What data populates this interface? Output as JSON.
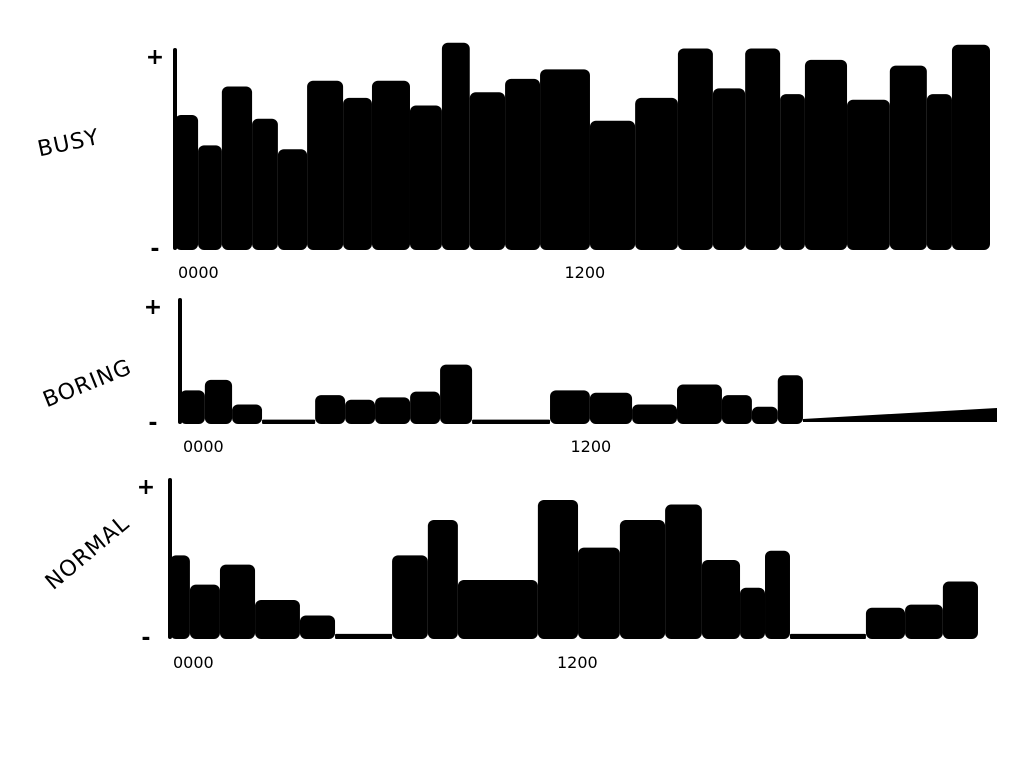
{
  "chart_data": [
    {
      "type": "bar",
      "title": "BUSY",
      "xlabel": "",
      "ylabel": "BUSY",
      "y_ticks": [
        "+",
        "-"
      ],
      "x_ticks": [
        {
          "label": "0000",
          "hour": 0
        },
        {
          "label": "1200",
          "hour": 12
        }
      ],
      "xlim": [
        0,
        24
      ],
      "ylim": [
        0,
        1
      ],
      "bars": [
        [
          0,
          0.68,
          0.7
        ],
        [
          0.68,
          1.38,
          0.54
        ],
        [
          1.38,
          2.27,
          0.85
        ],
        [
          2.27,
          3.03,
          0.68
        ],
        [
          3.03,
          3.89,
          0.52
        ],
        [
          3.89,
          4.95,
          0.88
        ],
        [
          4.95,
          5.8,
          0.79
        ],
        [
          5.8,
          6.92,
          0.88
        ],
        [
          6.92,
          7.86,
          0.75
        ],
        [
          7.86,
          8.68,
          1.08
        ],
        [
          8.68,
          9.72,
          0.82
        ],
        [
          9.72,
          10.75,
          0.89
        ],
        [
          10.75,
          12.22,
          0.94
        ],
        [
          12.22,
          13.55,
          0.67
        ],
        [
          13.55,
          14.81,
          0.79
        ],
        [
          14.81,
          15.84,
          1.05
        ],
        [
          15.84,
          16.79,
          0.84
        ],
        [
          16.79,
          17.82,
          1.05
        ],
        [
          17.82,
          18.55,
          0.81
        ],
        [
          18.55,
          19.79,
          0.99
        ],
        [
          19.79,
          21.05,
          0.78
        ],
        [
          21.05,
          22.14,
          0.96
        ],
        [
          22.14,
          22.88,
          0.81
        ],
        [
          22.88,
          24,
          1.07
        ]
      ]
    },
    {
      "type": "bar",
      "title": "BORING",
      "xlabel": "",
      "ylabel": "BORING",
      "y_ticks": [
        "+",
        "-"
      ],
      "x_ticks": [
        {
          "label": "0000",
          "hour": 0
        },
        {
          "label": "1200",
          "hour": 12
        }
      ],
      "xlim": [
        0,
        24
      ],
      "ylim": [
        0,
        1
      ],
      "bars": [
        [
          0,
          0.73,
          0.27
        ],
        [
          0.73,
          1.53,
          0.36
        ],
        [
          1.53,
          2.41,
          0.15
        ],
        [
          2.41,
          3.97,
          0.02
        ],
        [
          3.97,
          4.85,
          0.23
        ],
        [
          4.85,
          5.73,
          0.19
        ],
        [
          5.73,
          6.76,
          0.21
        ],
        [
          6.76,
          7.64,
          0.26
        ],
        [
          7.64,
          8.58,
          0.49
        ],
        [
          8.58,
          10.87,
          0.0
        ],
        [
          10.87,
          12.04,
          0.27
        ],
        [
          12.04,
          13.28,
          0.25
        ],
        [
          13.28,
          14.6,
          0.15
        ],
        [
          14.6,
          15.92,
          0.32
        ],
        [
          15.92,
          16.8,
          0.23
        ],
        [
          16.8,
          17.56,
          0.13
        ],
        [
          17.56,
          18.3,
          0.4
        ]
      ],
      "ramp": [
        18.3,
        24,
        0.0,
        0.12
      ]
    },
    {
      "type": "bar",
      "title": "NORMAL",
      "xlabel": "",
      "ylabel": "NORMAL",
      "y_ticks": [
        "+",
        "-"
      ],
      "x_ticks": [
        {
          "label": "0000",
          "hour": 0
        },
        {
          "label": "1200",
          "hour": 12
        }
      ],
      "xlim": [
        0,
        24
      ],
      "ylim": [
        0,
        1
      ],
      "bars": [
        [
          0,
          0.59,
          0.53
        ],
        [
          0.59,
          1.48,
          0.34
        ],
        [
          1.48,
          2.52,
          0.47
        ],
        [
          2.52,
          3.85,
          0.24
        ],
        [
          3.85,
          4.89,
          0.14
        ],
        [
          4.89,
          6.58,
          0.0
        ],
        [
          6.58,
          7.64,
          0.53
        ],
        [
          7.64,
          8.53,
          0.76
        ],
        [
          8.53,
          10.9,
          0.37
        ],
        [
          10.9,
          12.09,
          0.89
        ],
        [
          12.09,
          13.33,
          0.58
        ],
        [
          13.33,
          14.67,
          0.76
        ],
        [
          14.67,
          15.76,
          0.86
        ],
        [
          15.76,
          16.89,
          0.5
        ],
        [
          16.89,
          17.63,
          0.32
        ],
        [
          17.63,
          18.37,
          0.56
        ],
        [
          18.37,
          20.62,
          0.0
        ],
        [
          20.62,
          21.78,
          0.19
        ],
        [
          21.78,
          22.9,
          0.21
        ],
        [
          22.9,
          23.94,
          0.36
        ]
      ]
    }
  ]
}
